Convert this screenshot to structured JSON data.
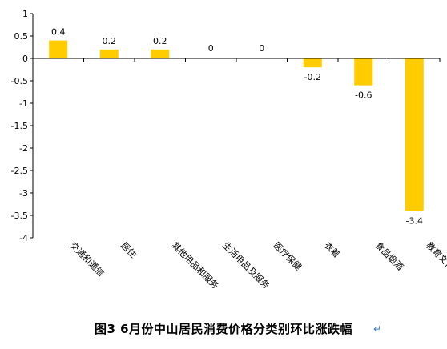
{
  "chart_data": {
    "type": "bar",
    "title": "图3  6月份中山居民消费价格分类别环比涨跌幅",
    "categories": [
      "交通和通信",
      "居住",
      "其他用品和服务",
      "生活用品及服务",
      "医疗保健",
      "衣着",
      "食品烟酒",
      "教育文化和娱乐"
    ],
    "values": [
      0.4,
      0.2,
      0.2,
      0,
      0,
      -0.2,
      -0.6,
      -3.4
    ],
    "value_labels": [
      "0.4",
      "0.2",
      "0.2",
      "0",
      "0",
      "-0.2",
      "-0.6",
      "-3.4"
    ],
    "ylim": [
      -4,
      1
    ],
    "yticks": [
      1,
      0.5,
      0,
      -0.5,
      -1,
      -1.5,
      -2,
      -2.5,
      -3,
      -3.5,
      -4
    ],
    "ytick_labels": [
      "1",
      "0.5",
      "0",
      "-0.5",
      "-1",
      "-1.5",
      "-2",
      "-2.5",
      "-3",
      "-3.5",
      "-4"
    ],
    "bar_color": "#FFCC00",
    "grid": false,
    "legend": "none"
  },
  "trailing_mark": "↵"
}
